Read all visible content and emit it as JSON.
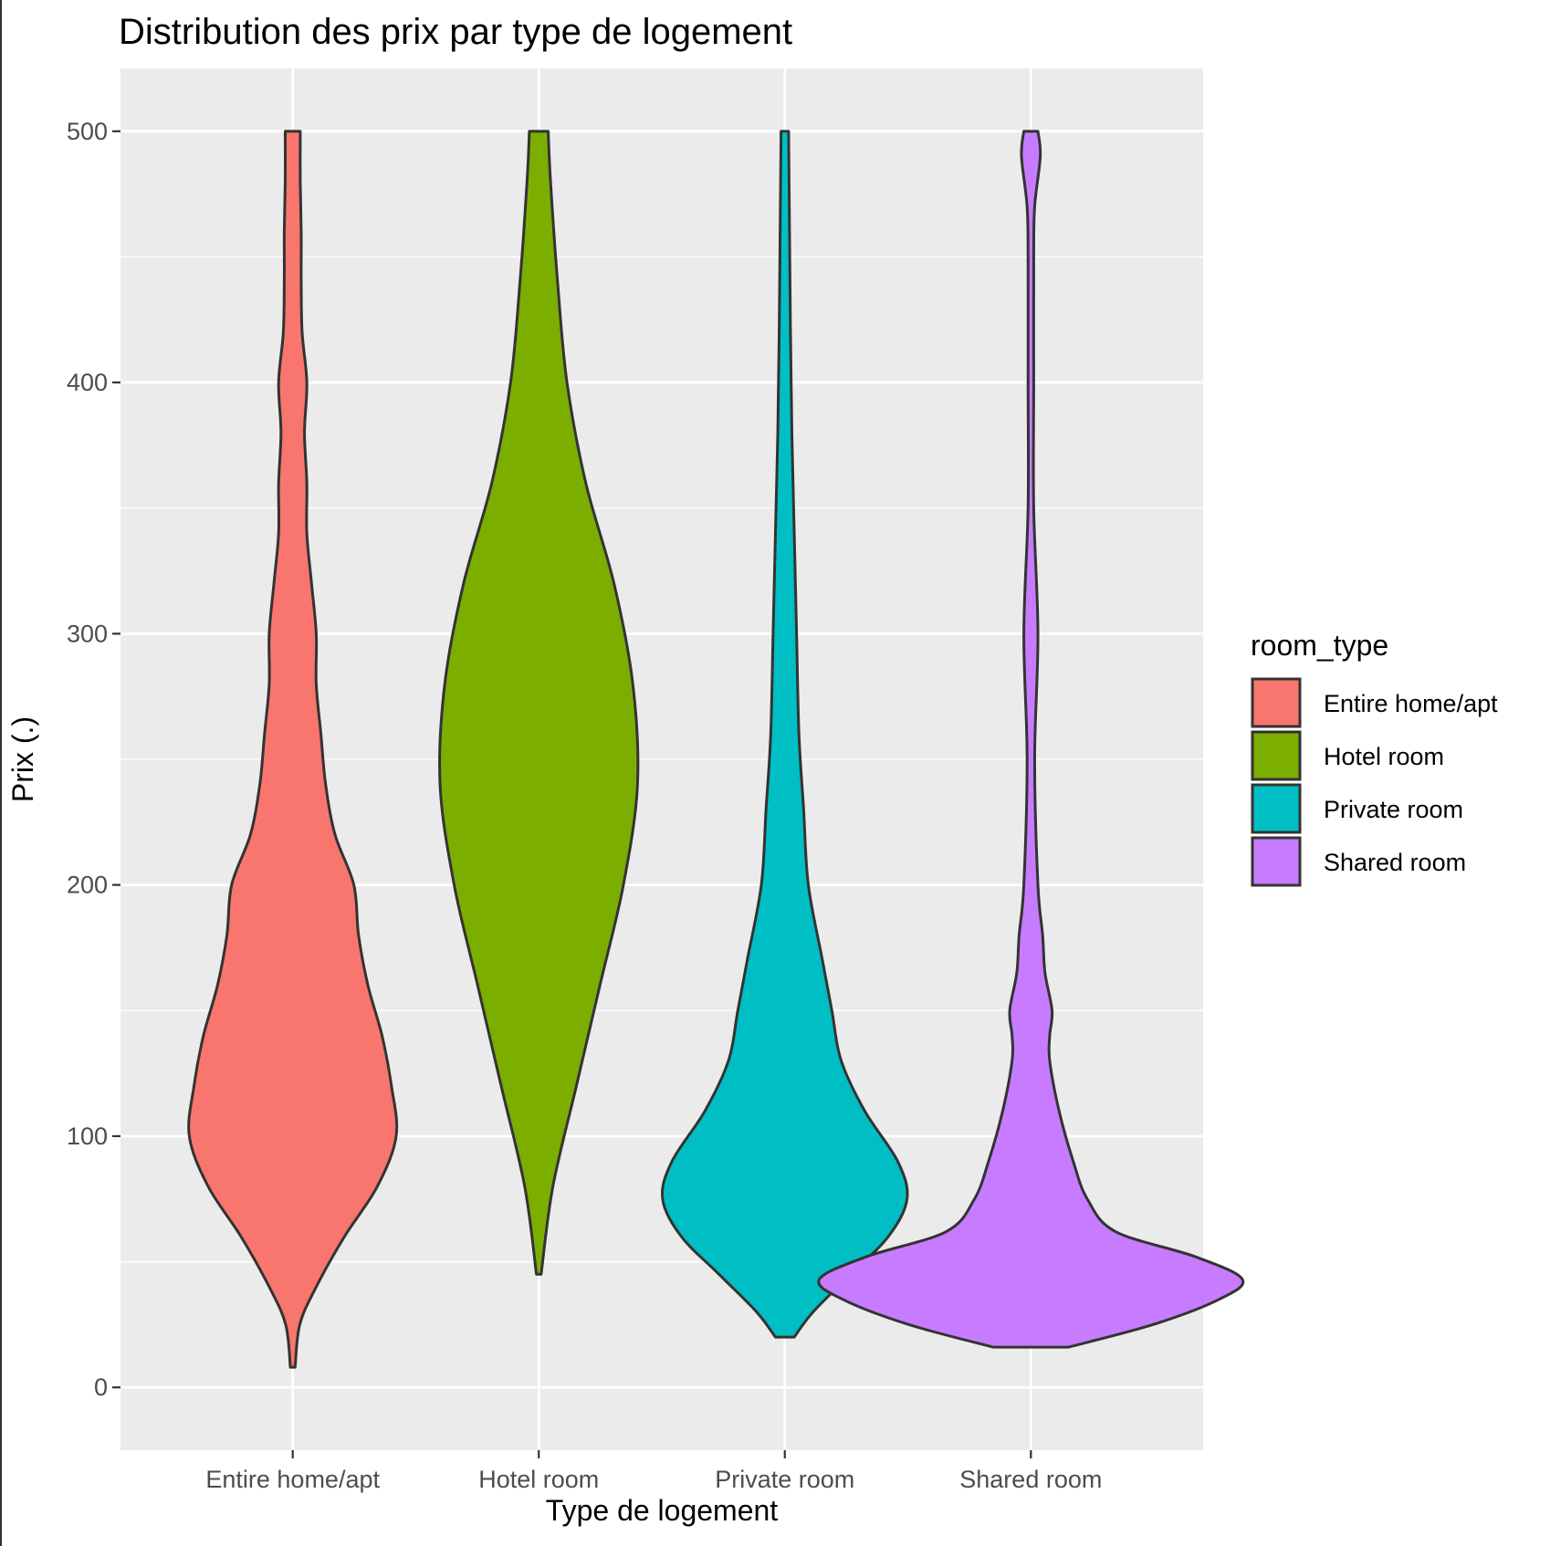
{
  "chart_data": {
    "type": "violin",
    "title": "Distribution des prix par type de logement",
    "xlabel": "Type de logement",
    "ylabel": "Prix (.)",
    "ylim": [
      -25,
      525
    ],
    "yticks": [
      0,
      100,
      200,
      300,
      400,
      500
    ],
    "y_minor_ticks": [
      50,
      150,
      250,
      350,
      450
    ],
    "grid": true,
    "legend": {
      "title": "room_type",
      "placement": "right",
      "entries": [
        "Entire home/apt",
        "Hotel room",
        "Private room",
        "Shared room"
      ]
    },
    "categories": [
      "Entire home/apt",
      "Hotel room",
      "Private room",
      "Shared room"
    ],
    "colors": [
      "#F8766D",
      "#7CAE00",
      "#00BFC4",
      "#C77CFF"
    ],
    "series": [
      {
        "name": "Entire home/apt",
        "min": 8,
        "max": 500,
        "density_width": [
          [
            8,
            0.5
          ],
          [
            25,
            1.5
          ],
          [
            40,
            5
          ],
          [
            60,
            11
          ],
          [
            80,
            18
          ],
          [
            100,
            22
          ],
          [
            120,
            21
          ],
          [
            140,
            19
          ],
          [
            160,
            16
          ],
          [
            180,
            14
          ],
          [
            200,
            13
          ],
          [
            220,
            9
          ],
          [
            240,
            7
          ],
          [
            260,
            6
          ],
          [
            280,
            5
          ],
          [
            300,
            5
          ],
          [
            320,
            4
          ],
          [
            340,
            3
          ],
          [
            360,
            3
          ],
          [
            380,
            2.5
          ],
          [
            400,
            3
          ],
          [
            420,
            2
          ],
          [
            440,
            1.8
          ],
          [
            460,
            1.8
          ],
          [
            480,
            1.6
          ],
          [
            500,
            1.6
          ]
        ]
      },
      {
        "name": "Hotel room",
        "min": 45,
        "max": 500,
        "density_width": [
          [
            45,
            0.5
          ],
          [
            80,
            3
          ],
          [
            120,
            8
          ],
          [
            160,
            13
          ],
          [
            200,
            18
          ],
          [
            240,
            21
          ],
          [
            280,
            20
          ],
          [
            320,
            16
          ],
          [
            360,
            10
          ],
          [
            400,
            6
          ],
          [
            440,
            4
          ],
          [
            480,
            2.5
          ],
          [
            500,
            2
          ]
        ]
      },
      {
        "name": "Private room",
        "min": 20,
        "max": 500,
        "density_width": [
          [
            20,
            2
          ],
          [
            30,
            6
          ],
          [
            45,
            14
          ],
          [
            60,
            22
          ],
          [
            75,
            26
          ],
          [
            90,
            24
          ],
          [
            110,
            17
          ],
          [
            130,
            12
          ],
          [
            150,
            10
          ],
          [
            170,
            8
          ],
          [
            200,
            5
          ],
          [
            230,
            4
          ],
          [
            260,
            3
          ],
          [
            300,
            2.5
          ],
          [
            340,
            2
          ],
          [
            380,
            1.5
          ],
          [
            420,
            1.2
          ],
          [
            460,
            1
          ],
          [
            500,
            0.8
          ]
        ]
      },
      {
        "name": "Shared room",
        "min": 16,
        "max": 500,
        "density_width": [
          [
            16,
            8
          ],
          [
            25,
            26
          ],
          [
            35,
            40
          ],
          [
            43,
            45
          ],
          [
            52,
            35
          ],
          [
            62,
            18
          ],
          [
            75,
            12
          ],
          [
            90,
            9
          ],
          [
            110,
            6
          ],
          [
            130,
            4
          ],
          [
            140,
            4
          ],
          [
            150,
            4.5
          ],
          [
            165,
            3
          ],
          [
            180,
            2.5
          ],
          [
            200,
            1.5
          ],
          [
            250,
            0.8
          ],
          [
            300,
            1.5
          ],
          [
            350,
            0.6
          ],
          [
            400,
            0.6
          ],
          [
            450,
            0.6
          ],
          [
            470,
            0.8
          ],
          [
            490,
            2
          ],
          [
            500,
            1.5
          ]
        ]
      }
    ]
  }
}
